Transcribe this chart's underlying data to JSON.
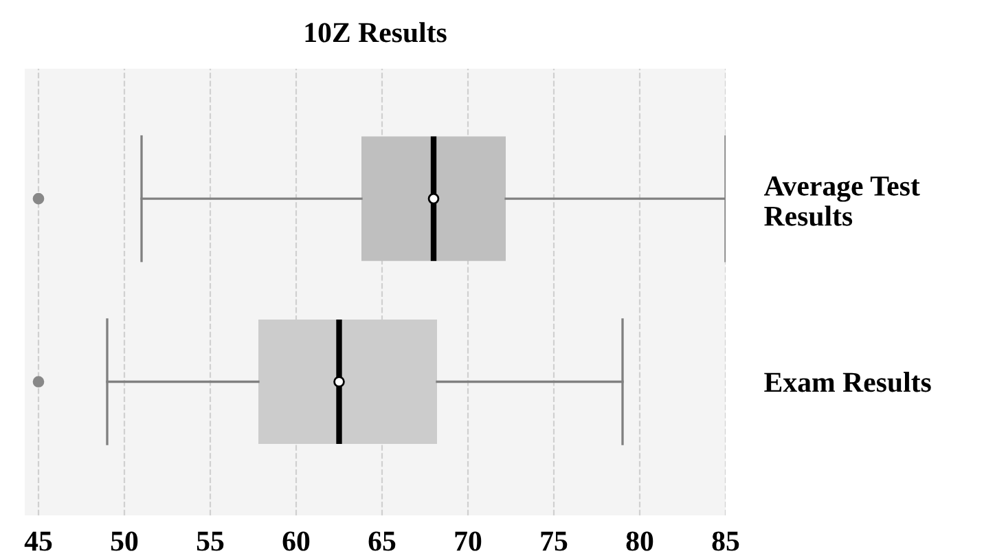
{
  "chart_data": {
    "type": "box",
    "title": "10Z Results",
    "orientation": "horizontal",
    "categories": [
      "Average Test Results",
      "Exam Results"
    ],
    "boxes": [
      {
        "low": 51,
        "q1": 63.8,
        "median": 68,
        "q3": 72.2,
        "high": 85,
        "mean": 68,
        "outliers": [
          45
        ]
      },
      {
        "low": 49,
        "q1": 57.8,
        "median": 62.5,
        "q3": 68.2,
        "high": 79,
        "mean": 62.5,
        "outliers": [
          45
        ]
      }
    ],
    "colors": [
      "#bfbfbf",
      "#cccccc"
    ],
    "xlim": [
      44.2,
      85
    ],
    "xticks": [
      45,
      50,
      55,
      60,
      65,
      70,
      75,
      80,
      85
    ],
    "grid": "x",
    "legend": false
  }
}
